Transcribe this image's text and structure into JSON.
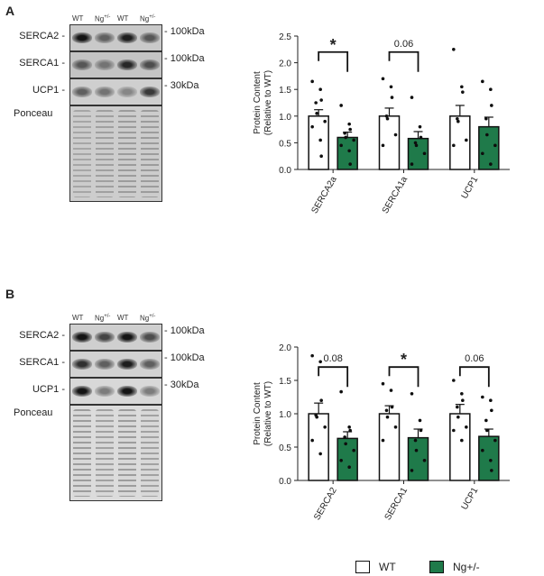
{
  "panelA": {
    "letter": "A",
    "blot": {
      "lanes": [
        "WT",
        "Ng+/-",
        "WT",
        "Ng+/-"
      ],
      "rows": [
        {
          "protein": "SERCA2 -",
          "marker": "- 100kDa",
          "kind": "band",
          "intensity": [
            0.95,
            0.55,
            0.9,
            0.6
          ],
          "bg": "#c9c9c9"
        },
        {
          "protein": "SERCA1 -",
          "marker": "- 100kDa",
          "kind": "band",
          "intensity": [
            0.6,
            0.45,
            0.85,
            0.65
          ],
          "bg": "#c4c4c4"
        },
        {
          "protein": "UCP1 -",
          "marker": "- 30kDa",
          "kind": "band",
          "intensity": [
            0.55,
            0.45,
            0.35,
            0.75
          ],
          "bg": "#cfcfcf"
        },
        {
          "protein": "Ponceau",
          "marker": "",
          "kind": "ponceau",
          "intensity": [
            0.35,
            0.4,
            0.45,
            0.45
          ],
          "bg": "#cdcdcd"
        }
      ]
    }
  },
  "panelB": {
    "letter": "B",
    "blot": {
      "lanes": [
        "WT",
        "Ng+/-",
        "WT",
        "Ng+/-"
      ],
      "rows": [
        {
          "protein": "SERCA2 -",
          "marker": "- 100kDa",
          "kind": "band",
          "intensity": [
            0.95,
            0.7,
            0.95,
            0.65
          ],
          "bg": "#cfcfcf"
        },
        {
          "protein": "SERCA1 -",
          "marker": "- 100kDa",
          "kind": "band",
          "intensity": [
            0.8,
            0.55,
            0.9,
            0.55
          ],
          "bg": "#d2d2d2"
        },
        {
          "protein": "UCP1 -",
          "marker": "- 30kDa",
          "kind": "band",
          "intensity": [
            0.95,
            0.4,
            0.95,
            0.4
          ],
          "bg": "#d8d8d8"
        },
        {
          "protein": "Ponceau",
          "marker": "",
          "kind": "ponceau",
          "intensity": [
            0.5,
            0.45,
            0.5,
            0.45
          ],
          "bg": "#dcdcdc"
        }
      ]
    }
  },
  "colors": {
    "wt": "#ffffff",
    "ng": "#1f7a4a",
    "axis": "#222222"
  },
  "chart_data": [
    {
      "type": "bar",
      "ylabel": "Protein Content\n(Relative to WT)",
      "ylim": [
        0,
        2.5
      ],
      "yticks": [
        "0.0",
        "0.5",
        "1.0",
        "1.5",
        "2.0",
        "2.5"
      ],
      "categories": [
        "SERCA2a",
        "SERCA1a",
        "UCP1"
      ],
      "series": [
        {
          "name": "WT",
          "values": [
            1.0,
            1.0,
            1.0
          ],
          "sem": [
            0.12,
            0.15,
            0.2
          ],
          "points": [
            [
              1.65,
              1.5,
              1.3,
              1.25,
              1.05,
              0.9,
              0.8,
              0.55,
              0.25
            ],
            [
              1.7,
              1.55,
              1.35,
              1.0,
              0.95,
              0.65,
              0.45
            ],
            [
              2.25,
              1.55,
              1.45,
              0.95,
              0.9,
              0.55,
              0.45
            ]
          ]
        },
        {
          "name": "Ng+/-",
          "values": [
            0.6,
            0.58,
            0.8
          ],
          "sem": [
            0.1,
            0.13,
            0.18
          ],
          "points": [
            [
              1.2,
              0.85,
              0.75,
              0.68,
              0.6,
              0.55,
              0.45,
              0.35,
              0.1
            ],
            [
              1.35,
              0.8,
              0.6,
              0.5,
              0.45,
              0.3,
              0.1
            ],
            [
              1.65,
              1.5,
              1.2,
              0.95,
              0.65,
              0.45,
              0.3,
              0.1
            ]
          ]
        }
      ],
      "comparisons": [
        {
          "category": 0,
          "label": "*",
          "y": 2.2
        },
        {
          "category": 1,
          "label": "0.06",
          "y": 2.2
        }
      ]
    },
    {
      "type": "bar",
      "ylabel": "Protein Content\n(Relative to WT)",
      "ylim": [
        0,
        2.0
      ],
      "yticks": [
        "0.0",
        "0.5",
        "1.0",
        "1.5",
        "2.0"
      ],
      "categories": [
        "SERCA2",
        "SERCA1",
        "UCP1"
      ],
      "series": [
        {
          "name": "WT",
          "values": [
            1.0,
            1.0,
            1.0
          ],
          "sem": [
            0.16,
            0.12,
            0.14
          ],
          "points": [
            [
              1.87,
              1.78,
              1.2,
              0.98,
              0.95,
              0.8,
              0.6,
              0.4
            ],
            [
              1.45,
              1.35,
              1.1,
              1.05,
              0.95,
              0.8,
              0.6
            ],
            [
              1.5,
              1.3,
              1.2,
              1.1,
              0.95,
              0.8,
              0.75,
              0.6
            ]
          ]
        },
        {
          "name": "Ng+/-",
          "values": [
            0.63,
            0.64,
            0.66
          ],
          "sem": [
            0.1,
            0.13,
            0.11
          ],
          "points": [
            [
              1.33,
              0.8,
              0.75,
              0.65,
              0.55,
              0.45,
              0.3,
              0.2
            ],
            [
              1.3,
              0.9,
              0.75,
              0.6,
              0.45,
              0.3,
              0.15
            ],
            [
              1.25,
              1.2,
              1.05,
              0.9,
              0.75,
              0.6,
              0.45,
              0.3,
              0.15
            ]
          ]
        }
      ],
      "comparisons": [
        {
          "category": 0,
          "label": "0.08",
          "y": 1.7
        },
        {
          "category": 1,
          "label": "*",
          "y": 1.7
        },
        {
          "category": 2,
          "label": "0.06",
          "y": 1.7
        }
      ]
    }
  ],
  "legend": {
    "wt": "WT",
    "ng": "Ng+/-"
  }
}
